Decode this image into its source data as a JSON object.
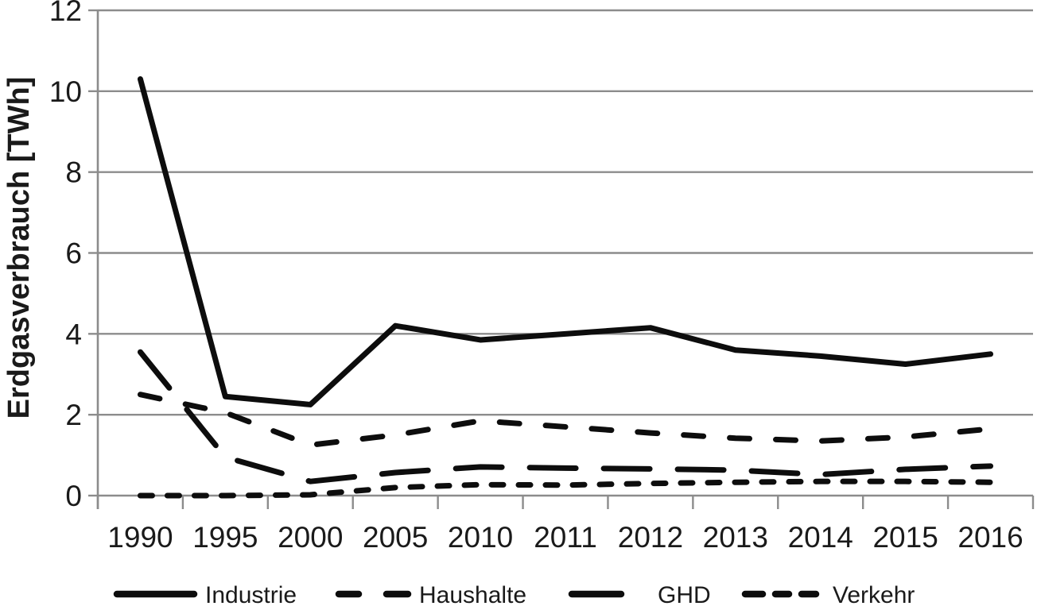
{
  "chart_data": {
    "type": "line",
    "title": "",
    "xlabel": "",
    "ylabel": "Erdgasverbrauch [TWh]",
    "categories": [
      "1990",
      "1995",
      "2000",
      "2005",
      "2010",
      "2011",
      "2012",
      "2013",
      "2014",
      "2015",
      "2016"
    ],
    "series": [
      {
        "name": "Industrie",
        "style": "solid",
        "values": [
          10.3,
          2.45,
          2.25,
          4.2,
          3.85,
          4.0,
          4.15,
          3.6,
          3.45,
          3.25,
          3.5
        ]
      },
      {
        "name": "Haushalte",
        "style": "dash",
        "values": [
          2.5,
          2.05,
          1.25,
          1.5,
          1.85,
          1.7,
          1.55,
          1.42,
          1.35,
          1.45,
          1.65
        ]
      },
      {
        "name": "GHD",
        "style": "longdash",
        "values": [
          3.55,
          0.95,
          0.35,
          0.57,
          0.71,
          0.68,
          0.66,
          0.63,
          0.52,
          0.65,
          0.73
        ]
      },
      {
        "name": "Verkehr",
        "style": "shortdash",
        "values": [
          0.0,
          0.0,
          0.02,
          0.2,
          0.27,
          0.26,
          0.3,
          0.33,
          0.35,
          0.35,
          0.33
        ]
      }
    ],
    "ylim": [
      0,
      12
    ],
    "yticks": [
      0,
      2,
      4,
      6,
      8,
      10,
      12
    ],
    "grid": true,
    "legend_position": "bottom",
    "line_color": "#0d0d0d",
    "grid_color": "#8c8c8c"
  }
}
